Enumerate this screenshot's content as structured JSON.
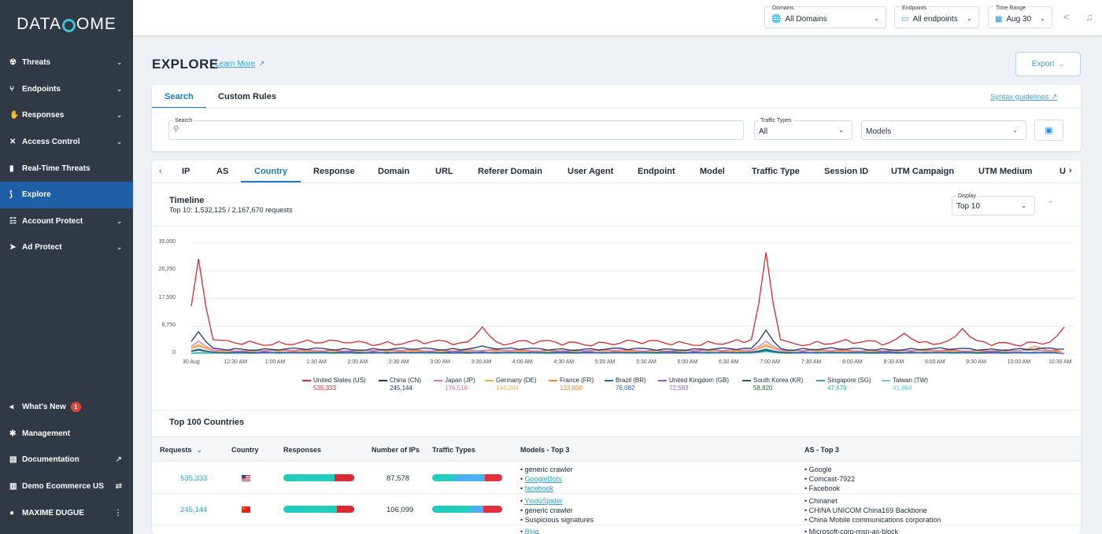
{
  "brand": {
    "left": "DATA",
    "right": "OME"
  },
  "sidebar": {
    "items": [
      {
        "icon": "☢",
        "label": "Threats",
        "chev": "⌄"
      },
      {
        "icon": "⑂",
        "label": "Endpoints",
        "chev": "⌄"
      },
      {
        "icon": "✋",
        "label": "Responses",
        "chev": "⌄"
      },
      {
        "icon": "✕",
        "label": "Access Control",
        "chev": "⌄"
      },
      {
        "icon": "▮",
        "label": "Real-Time Threats",
        "chev": ""
      },
      {
        "icon": "⟆",
        "label": "Explore",
        "chev": ""
      },
      {
        "icon": "☷",
        "label": "Account Protect",
        "chev": "⌄"
      },
      {
        "icon": "➤",
        "label": "Ad Protect",
        "chev": "⌄"
      }
    ],
    "bottom": [
      {
        "icon": "◂",
        "label": "What's New",
        "badge": "1",
        "right": ""
      },
      {
        "icon": "✱",
        "label": "Management",
        "right": ""
      },
      {
        "icon": "▤",
        "label": "Documentation",
        "right": "↗"
      },
      {
        "icon": "▥",
        "label": "Demo Ecommerce US",
        "right": "⇄"
      },
      {
        "icon": "●",
        "label": "MAXIME DUGUE",
        "right": "⋮"
      }
    ]
  },
  "topbar": {
    "domains": {
      "label": "Domains",
      "value": "All Domains",
      "icon": "🌐"
    },
    "endpoints": {
      "label": "Endpoints",
      "value": "All endpoints",
      "icon": "▭"
    },
    "time": {
      "label": "Time Range",
      "value": "Aug 30",
      "icon": "▦"
    }
  },
  "page": {
    "title": "EXPLORE",
    "learn_more": "Learn More",
    "export": "Export"
  },
  "search": {
    "tabs": [
      "Search",
      "Custom Rules"
    ],
    "syntax": "Syntax guidelines",
    "search_label": "Search",
    "traffic_label": "Traffic Types",
    "traffic_value": "All",
    "models_value": "Models"
  },
  "dimensions": [
    "IP",
    "AS",
    "Country",
    "Response",
    "Domain",
    "URL",
    "Referer Domain",
    "User Agent",
    "Endpoint",
    "Model",
    "Traffic Type",
    "Session ID",
    "UTM Campaign",
    "UTM Medium",
    "U"
  ],
  "timeline": {
    "title": "Timeline",
    "subtitle": "Top 10: 1,532,125 / 2,167,670 requests",
    "display_label": "Display",
    "display_value": "Top 10"
  },
  "chart_data": {
    "type": "line",
    "ylim": [
      0,
      35000
    ],
    "y_ticks": [
      "35,000",
      "26,250",
      "17,500",
      "8,750",
      "0"
    ],
    "x_ticks": [
      "30 Aug",
      "12:30 AM",
      "1:00 AM",
      "1:30 AM",
      "2:00 AM",
      "2:30 AM",
      "3:00 AM",
      "3:30 AM",
      "4:00 AM",
      "4:30 AM",
      "5:00 AM",
      "5:30 AM",
      "6:00 AM",
      "6:30 AM",
      "7:00 AM",
      "7:30 AM",
      "8:00 AM",
      "8:30 AM",
      "9:00 AM",
      "9:30 AM",
      "10:00 AM",
      "10:30 AM"
    ],
    "series": [
      {
        "name": "United States (US)",
        "total": "535,333",
        "color": "#d42a36",
        "base": 3500,
        "spikes": [
          [
            1,
            30000
          ],
          [
            4,
            2000
          ],
          [
            22,
            3500
          ],
          [
            40,
            8500
          ],
          [
            79,
            32000
          ],
          [
            98,
            6500
          ],
          [
            106,
            8000
          ],
          [
            120,
            8500
          ]
        ]
      },
      {
        "name": "China (CN)",
        "total": "245,144",
        "color": "#1c3a6c",
        "base": 1500,
        "spikes": [
          [
            1,
            7000
          ],
          [
            40,
            2500
          ],
          [
            79,
            7500
          ],
          [
            120,
            1500
          ]
        ]
      },
      {
        "name": "Japan (JP)",
        "total": "176,516",
        "color": "#e46db7",
        "base": 1100,
        "spikes": [
          [
            1,
            4000
          ],
          [
            79,
            4000
          ]
        ]
      },
      {
        "name": "Germany (DE)",
        "total": "144,244",
        "color": "#f0b240",
        "base": 900,
        "spikes": [
          [
            1,
            3000
          ],
          [
            79,
            3000
          ],
          [
            115,
            1200
          ]
        ]
      },
      {
        "name": "France (FR)",
        "total": "133,850",
        "color": "#ee8a35",
        "base": 1000,
        "spikes": [
          [
            1,
            2500
          ],
          [
            79,
            2500
          ],
          [
            116,
            2400
          ]
        ]
      },
      {
        "name": "Brazil (BR)",
        "total": "76,082",
        "color": "#1e5fb4",
        "base": 500,
        "spikes": [
          [
            1,
            1500
          ],
          [
            79,
            1500
          ]
        ]
      },
      {
        "name": "United Kingdom (GB)",
        "total": "72,593",
        "color": "#8a5bd6",
        "base": 450,
        "spikes": [
          [
            1,
            1500
          ],
          [
            79,
            1500
          ]
        ]
      },
      {
        "name": "South Korea (KR)",
        "total": "58,820",
        "color": "#1c6b3c",
        "base": 400,
        "spikes": [
          [
            1,
            1200
          ],
          [
            79,
            1200
          ]
        ]
      },
      {
        "name": "Singapore (SG)",
        "total": "47,679",
        "color": "#28b0a6",
        "base": 300,
        "spikes": [
          [
            79,
            800
          ]
        ]
      },
      {
        "name": "Taiwan (TW)",
        "total": "41,864",
        "color": "#6dc4e6",
        "base": 250,
        "spikes": [
          [
            79,
            700
          ]
        ]
      }
    ]
  },
  "table": {
    "title": "Top 100 Countries",
    "headers": [
      "Requests",
      "Country",
      "Responses",
      "Number of IPs",
      "Traffic Types",
      "Models - Top 3",
      "AS - Top 3"
    ],
    "rows": [
      {
        "requests": "535,333",
        "flag": "US",
        "ips": "87,578",
        "responses": [
          0.72,
          0.27,
          0.01
        ],
        "traffic": [
          0.33,
          0.42,
          0.25
        ],
        "models": [
          "generic crawler",
          "GoogleBots",
          "facebook"
        ],
        "model_links": [
          false,
          true,
          true
        ],
        "as": [
          "Google",
          "Comcast-7922",
          "Facebook"
        ]
      },
      {
        "requests": "245,144",
        "flag": "CN",
        "ips": "106,099",
        "responses": [
          0.76,
          0.23,
          0.01
        ],
        "traffic": [
          0.55,
          0.18,
          0.27
        ],
        "models": [
          "YisouSpider",
          "generic crawler",
          "Suspicious signatures"
        ],
        "model_links": [
          true,
          false,
          false
        ],
        "as": [
          "Chinanet",
          "CHINA UNICOM China169 Backbone",
          "China Mobile communications corporation"
        ]
      },
      {
        "models": [
          "Bing"
        ],
        "model_links": [
          true
        ],
        "as": [
          "Microsoft-corp-msn-as-block"
        ]
      }
    ]
  }
}
